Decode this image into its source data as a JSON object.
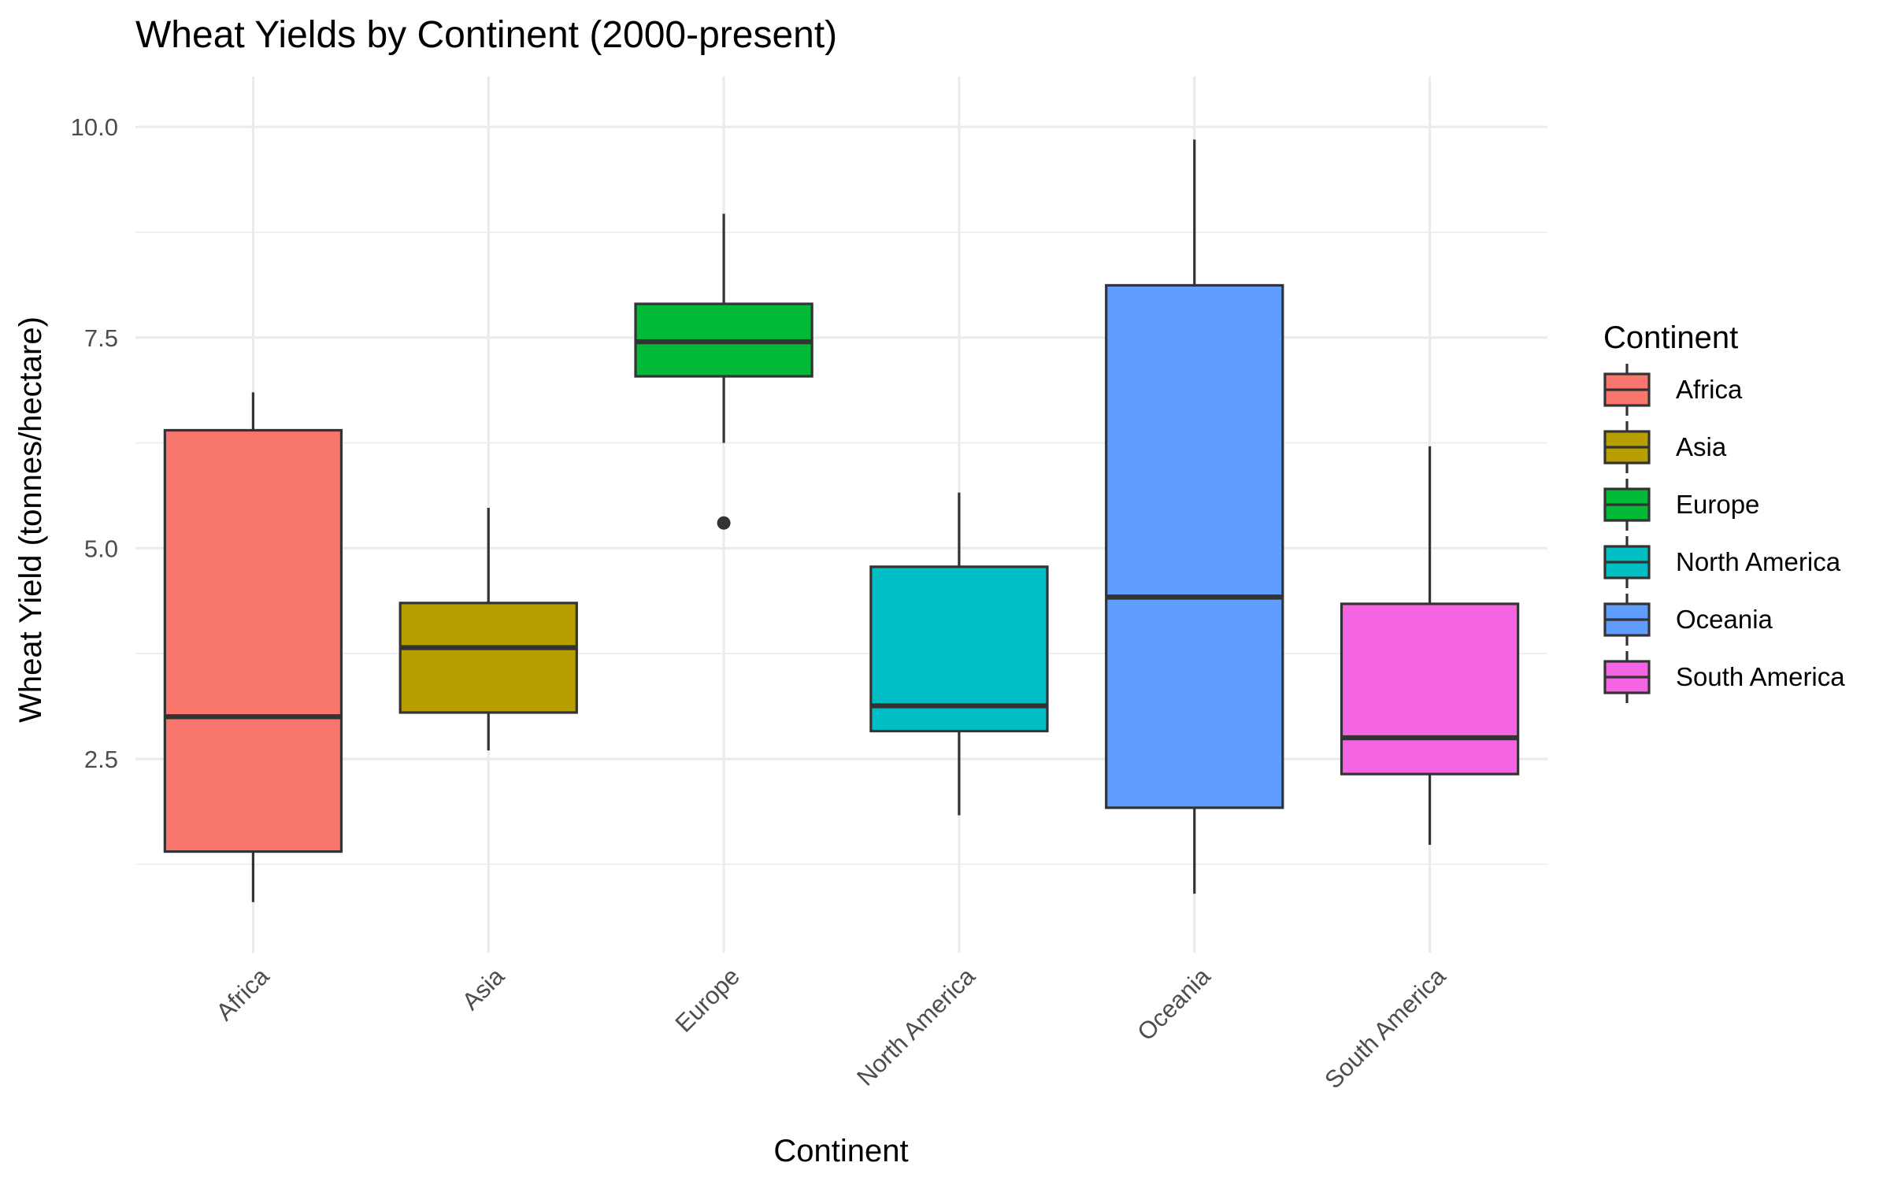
{
  "chart_data": {
    "type": "box",
    "title": "Wheat Yields by Continent (2000-present)",
    "xlabel": "Continent",
    "ylabel": "Wheat Yield (tonnes/hectare)",
    "ylim": [
      0.2,
      10.6
    ],
    "yticks": [
      2.5,
      5.0,
      7.5,
      10.0
    ],
    "ytick_labels": [
      "2.5",
      "5.0",
      "7.5",
      "10.0"
    ],
    "grid": true,
    "legend": {
      "title": "Continent",
      "position": "right"
    },
    "categories": [
      "Africa",
      "Asia",
      "Europe",
      "North America",
      "Oceania",
      "South America"
    ],
    "series": [
      {
        "name": "Africa",
        "color": "#F8766D",
        "whisker_low": 0.8,
        "q1": 1.4,
        "median": 3.0,
        "q3": 6.4,
        "whisker_high": 6.85,
        "outliers": []
      },
      {
        "name": "Asia",
        "color": "#B79F00",
        "whisker_low": 2.6,
        "q1": 3.05,
        "median": 3.82,
        "q3": 4.35,
        "whisker_high": 5.48,
        "outliers": []
      },
      {
        "name": "Europe",
        "color": "#00BA38",
        "whisker_low": 6.25,
        "q1": 7.04,
        "median": 7.45,
        "q3": 7.9,
        "whisker_high": 8.97,
        "outliers": [
          5.3
        ]
      },
      {
        "name": "North America",
        "color": "#00BFC4",
        "whisker_low": 1.83,
        "q1": 2.83,
        "median": 3.13,
        "q3": 4.78,
        "whisker_high": 5.66,
        "outliers": []
      },
      {
        "name": "Oceania",
        "color": "#619CFF",
        "whisker_low": 0.9,
        "q1": 1.92,
        "median": 4.42,
        "q3": 8.12,
        "whisker_high": 9.85,
        "outliers": []
      },
      {
        "name": "South America",
        "color": "#F564E3",
        "whisker_low": 1.48,
        "q1": 2.32,
        "median": 2.75,
        "q3": 4.34,
        "whisker_high": 6.21,
        "outliers": []
      }
    ]
  }
}
